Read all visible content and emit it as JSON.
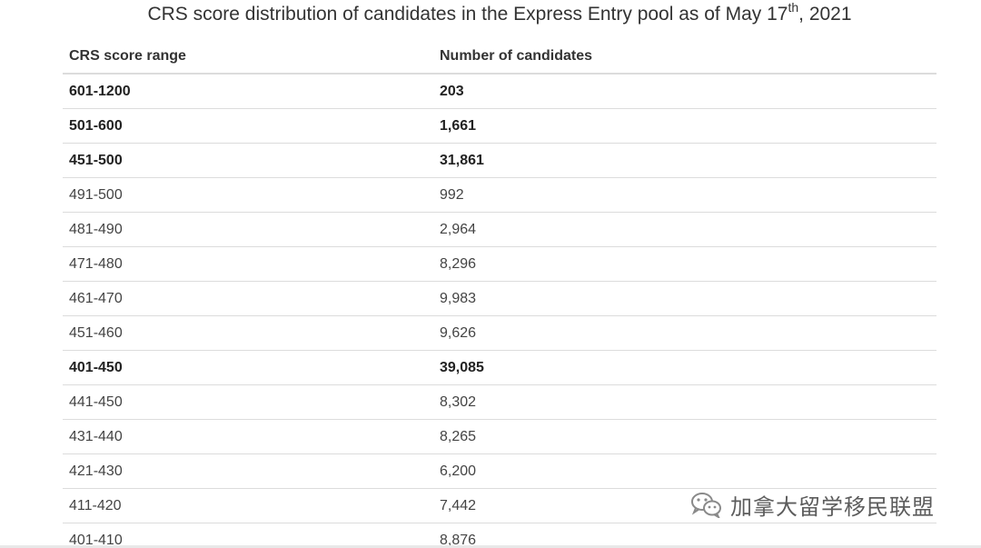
{
  "title": {
    "main": "CRS score distribution of candidates in the Express Entry pool as of May 17",
    "sup": "th",
    "year": ", 2021"
  },
  "table": {
    "headers": [
      "CRS score range",
      "Number of candidates"
    ],
    "rows": [
      {
        "range": "601-1200",
        "count": "203",
        "bold": true
      },
      {
        "range": "501-600",
        "count": "1,661",
        "bold": true
      },
      {
        "range": "451-500",
        "count": "31,861",
        "bold": true
      },
      {
        "range": "491-500",
        "count": "992",
        "bold": false
      },
      {
        "range": "481-490",
        "count": "2,964",
        "bold": false
      },
      {
        "range": "471-480",
        "count": "8,296",
        "bold": false
      },
      {
        "range": "461-470",
        "count": "9,983",
        "bold": false
      },
      {
        "range": "451-460",
        "count": "9,626",
        "bold": false
      },
      {
        "range": "401-450",
        "count": "39,085",
        "bold": true
      },
      {
        "range": "441-450",
        "count": "8,302",
        "bold": false
      },
      {
        "range": "431-440",
        "count": "8,265",
        "bold": false
      },
      {
        "range": "421-430",
        "count": "6,200",
        "bold": false
      },
      {
        "range": "411-420",
        "count": "7,442",
        "bold": false
      },
      {
        "range": "401-410",
        "count": "8,876",
        "bold": false
      }
    ]
  },
  "watermark": {
    "text": "加拿大留学移民联盟",
    "icon": "wechat-icon"
  }
}
